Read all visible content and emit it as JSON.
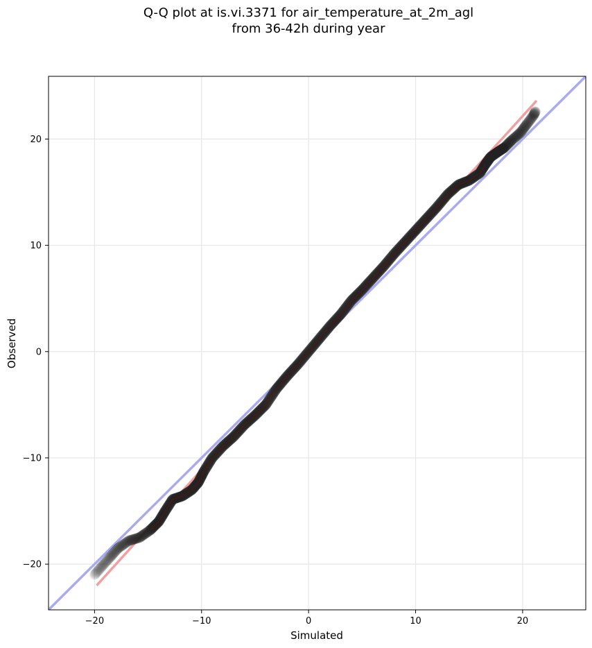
{
  "title": "Q-Q plot at is.vi.3371 for air_temperature_at_2m_agl",
  "subtitle": "from 36-42h during year",
  "chart_data": {
    "type": "scatter",
    "title": "Q-Q plot at is.vi.3371 for air_temperature_at_2m_agl",
    "subtitle": "from 36-42h during year",
    "xlabel": "Simulated",
    "ylabel": "Observed",
    "xlim": [
      -24.3,
      25.9
    ],
    "ylim": [
      -24.3,
      25.9
    ],
    "xticks": [
      -20,
      -10,
      0,
      10,
      20
    ],
    "yticks": [
      -20,
      -10,
      0,
      10,
      20
    ],
    "xtick_labels": [
      "−20",
      "−10",
      "0",
      "10",
      "20"
    ],
    "ytick_labels": [
      "−20",
      "−10",
      "0",
      "10",
      "20"
    ],
    "grid": true,
    "reference_line": {
      "description": "1:1",
      "color": "#aaaaf0",
      "points": [
        [
          -24.3,
          -24.3
        ],
        [
          25.9,
          25.9
        ]
      ]
    },
    "fit_line": {
      "color": "#f0a0a0",
      "points": [
        [
          -19.8,
          -22.0
        ],
        [
          21.3,
          23.6
        ]
      ]
    },
    "quantile_curve": {
      "color": "#222222",
      "points": [
        [
          -20.0,
          -21.0
        ],
        [
          -19.4,
          -20.3
        ],
        [
          -18.6,
          -19.4
        ],
        [
          -17.8,
          -18.5
        ],
        [
          -16.8,
          -17.8
        ],
        [
          -15.8,
          -17.5
        ],
        [
          -14.8,
          -16.8
        ],
        [
          -14.0,
          -16.0
        ],
        [
          -13.4,
          -15.0
        ],
        [
          -12.7,
          -13.9
        ],
        [
          -11.8,
          -13.6
        ],
        [
          -10.9,
          -13.0
        ],
        [
          -10.3,
          -12.3
        ],
        [
          -9.8,
          -11.3
        ],
        [
          -9.0,
          -10.0
        ],
        [
          -8.0,
          -8.9
        ],
        [
          -7.0,
          -8.0
        ],
        [
          -6.0,
          -6.9
        ],
        [
          -5.0,
          -6.0
        ],
        [
          -4.0,
          -5.0
        ],
        [
          -3.0,
          -3.5
        ],
        [
          -2.0,
          -2.3
        ],
        [
          -1.0,
          -1.2
        ],
        [
          0.0,
          0.0
        ],
        [
          1.0,
          1.2
        ],
        [
          2.0,
          2.4
        ],
        [
          3.0,
          3.5
        ],
        [
          4.0,
          4.8
        ],
        [
          5.0,
          5.8
        ],
        [
          6.0,
          6.9
        ],
        [
          7.0,
          8.0
        ],
        [
          8.0,
          9.2
        ],
        [
          9.0,
          10.3
        ],
        [
          10.0,
          11.4
        ],
        [
          11.0,
          12.5
        ],
        [
          12.0,
          13.6
        ],
        [
          13.0,
          14.8
        ],
        [
          14.0,
          15.7
        ],
        [
          15.0,
          16.1
        ],
        [
          16.0,
          16.8
        ],
        [
          16.5,
          17.6
        ],
        [
          17.0,
          18.3
        ],
        [
          17.7,
          18.8
        ],
        [
          18.3,
          19.2
        ],
        [
          19.0,
          19.9
        ],
        [
          19.8,
          20.6
        ],
        [
          20.4,
          21.4
        ],
        [
          21.0,
          22.2
        ],
        [
          21.2,
          22.6
        ]
      ]
    }
  }
}
